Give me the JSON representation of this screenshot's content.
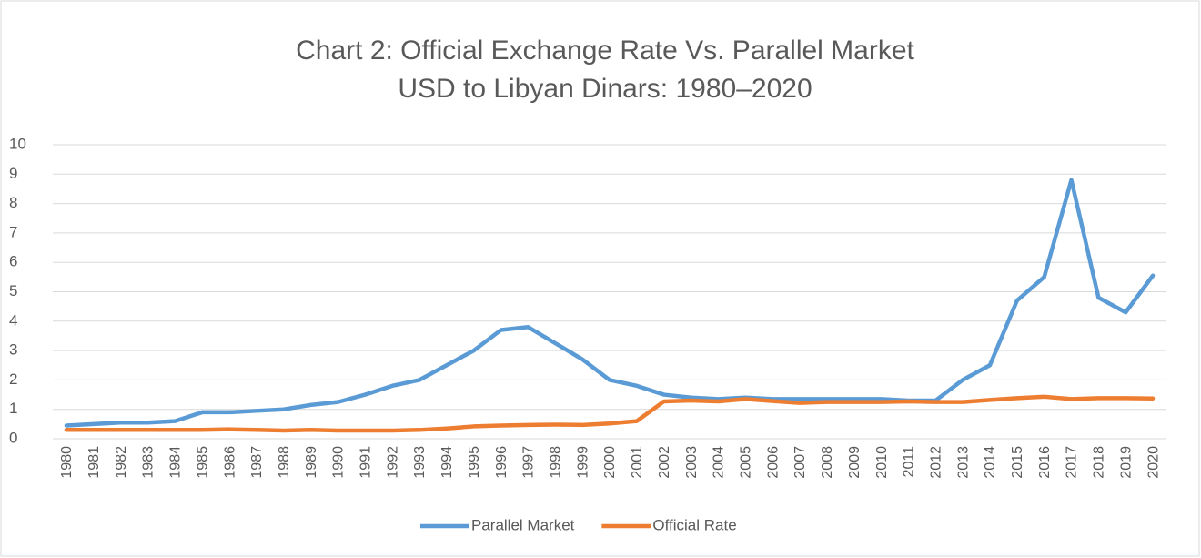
{
  "chart_data": {
    "type": "line",
    "title": "Chart 2: Official Exchange Rate Vs. Parallel Market",
    "subtitle": "USD to Libyan Dinars: 1980–2020",
    "categories": [
      "1980",
      "1981",
      "1982",
      "1983",
      "1984",
      "1985",
      "1986",
      "1987",
      "1988",
      "1989",
      "1990",
      "1991",
      "1992",
      "1993",
      "1994",
      "1995",
      "1996",
      "1997",
      "1998",
      "1999",
      "2000",
      "2001",
      "2002",
      "2003",
      "2004",
      "2005",
      "2006",
      "2007",
      "2008",
      "2009",
      "2010",
      "2011",
      "2012",
      "2013",
      "2014",
      "2015",
      "2016",
      "2017",
      "2018",
      "2019",
      "2020"
    ],
    "series": [
      {
        "name": "Parallel Market",
        "color": "#5b9bd5",
        "values": [
          0.45,
          0.5,
          0.55,
          0.55,
          0.6,
          0.9,
          0.9,
          0.95,
          1.0,
          1.15,
          1.25,
          1.5,
          1.8,
          2.0,
          2.5,
          3.0,
          3.7,
          3.8,
          3.25,
          2.7,
          2.0,
          1.8,
          1.5,
          1.4,
          1.35,
          1.4,
          1.35,
          1.35,
          1.35,
          1.35,
          1.35,
          1.3,
          1.3,
          2.0,
          2.5,
          4.7,
          5.5,
          8.8,
          4.8,
          4.3,
          5.55
        ]
      },
      {
        "name": "Official Rate",
        "color": "#ed7d31",
        "values": [
          0.3,
          0.3,
          0.3,
          0.3,
          0.3,
          0.3,
          0.32,
          0.3,
          0.28,
          0.3,
          0.28,
          0.28,
          0.28,
          0.3,
          0.35,
          0.42,
          0.45,
          0.47,
          0.48,
          0.47,
          0.52,
          0.6,
          1.27,
          1.3,
          1.27,
          1.35,
          1.28,
          1.22,
          1.25,
          1.25,
          1.25,
          1.27,
          1.25,
          1.25,
          1.32,
          1.38,
          1.43,
          1.35,
          1.38,
          1.38,
          1.37
        ]
      }
    ],
    "ylim": [
      0,
      10
    ],
    "yticks": [
      0,
      1,
      2,
      3,
      4,
      5,
      6,
      7,
      8,
      9,
      10
    ],
    "grid": true,
    "legend": "bottom"
  }
}
